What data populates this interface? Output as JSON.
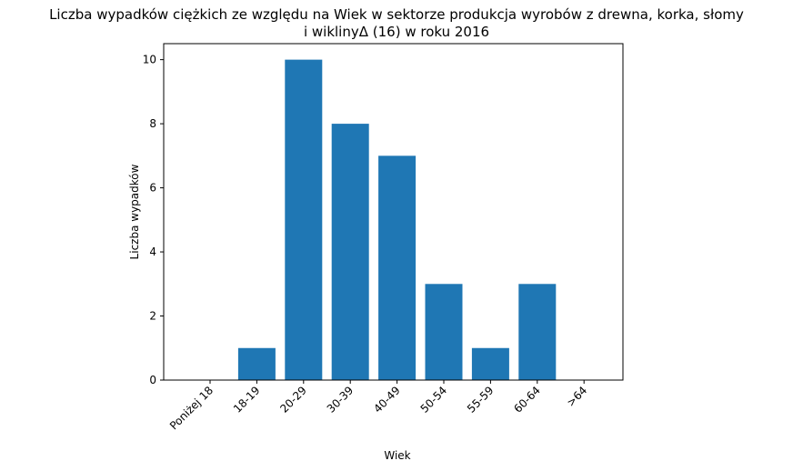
{
  "chart_data": {
    "type": "bar",
    "title_lines": [
      "Liczba wypadków ciężkich ze względu na Wiek w sektorze produkcja wyrobów z drewna, korka, słomy",
      "i wiklinyΔ (16)  w roku 2016"
    ],
    "xlabel": "Wiek",
    "ylabel": "Liczba wypadków",
    "categories": [
      "Poniżej 18",
      "18-19",
      "20-29",
      "30-39",
      "40-49",
      "50-54",
      "55-59",
      "60-64",
      ">64"
    ],
    "values": [
      0,
      1,
      10,
      8,
      7,
      3,
      1,
      3,
      0
    ],
    "ylim": [
      0,
      10.5
    ],
    "yticks": [
      0,
      2,
      4,
      6,
      8,
      10
    ],
    "bar_color": "#1f77b4",
    "grid": false,
    "legend": "none"
  }
}
